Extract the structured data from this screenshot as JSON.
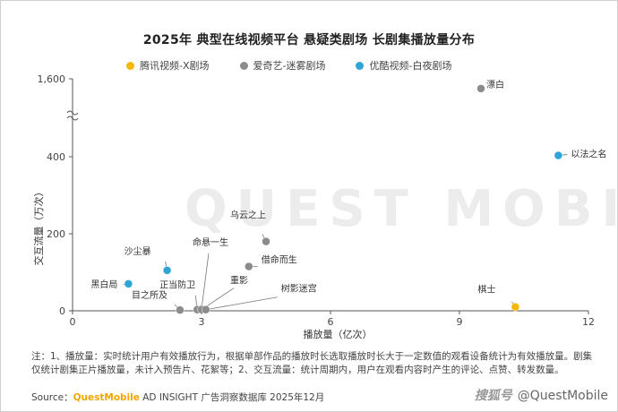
{
  "chart_data": {
    "type": "scatter",
    "title": "2025年 典型在线视频平台 悬疑类剧场 长剧集播放量分布",
    "xlabel": "播放量（亿次）",
    "ylabel": "交互流量（万次）",
    "x_ticks": [
      "0",
      "3",
      "6",
      "9",
      "12"
    ],
    "y_ticks": [
      "0",
      "200",
      "400",
      "1,600"
    ],
    "xlim": [
      0,
      12
    ],
    "ylim": [
      0,
      1600
    ],
    "y_axis_break": "between 400 and 1,600",
    "grid": false,
    "legend_position": "top",
    "series": [
      {
        "name": "腾讯视频-X剧场",
        "color": "#f5b800",
        "points": [
          {
            "label": "棋士",
            "x": 10.3,
            "y": 10
          }
        ]
      },
      {
        "name": "爱奇艺-迷雾剧场",
        "color": "#8c8c8c",
        "points": [
          {
            "label": "漂白",
            "x": 9.5,
            "y": 1450
          },
          {
            "label": "乌云之上",
            "x": 4.5,
            "y": 180
          },
          {
            "label": "借命而生",
            "x": 4.1,
            "y": 115
          },
          {
            "label": "命悬一生",
            "x": 3.0,
            "y": 5
          },
          {
            "label": "正当防卫",
            "x": 2.9,
            "y": 3
          },
          {
            "label": "目之所及",
            "x": 2.5,
            "y": 2
          },
          {
            "label": "重影",
            "x": 3.0,
            "y": 3
          },
          {
            "label": "树影迷宫",
            "x": 3.1,
            "y": 3
          }
        ]
      },
      {
        "name": "优酷视频-白夜剧场",
        "color": "#2fa4d7",
        "points": [
          {
            "label": "以法之名",
            "x": 11.3,
            "y": 420
          },
          {
            "label": "沙尘暴",
            "x": 2.2,
            "y": 105
          },
          {
            "label": "黑白局",
            "x": 1.3,
            "y": 70
          }
        ]
      }
    ]
  },
  "watermark_text": "QUEST MOBILE",
  "footnote": "注：1、播放量：实时统计用户有效播放行为，根据单部作品的播放时长选取播放时长大于一定数值的观看设备统计为有效播放量。剧集仅统计剧集正片播放量，未计入预告片、花絮等；2、交互流量：统计周期内，用户在观看内容时产生的评论、点赞、转发数量。",
  "source": {
    "prefix": "Source：",
    "brand": "QuestMobile",
    "rest": " AD INSIGHT 广告洞察数据库 2025年12月"
  },
  "credit": {
    "platform": "搜狐号",
    "handle": "@QuestMobile"
  }
}
